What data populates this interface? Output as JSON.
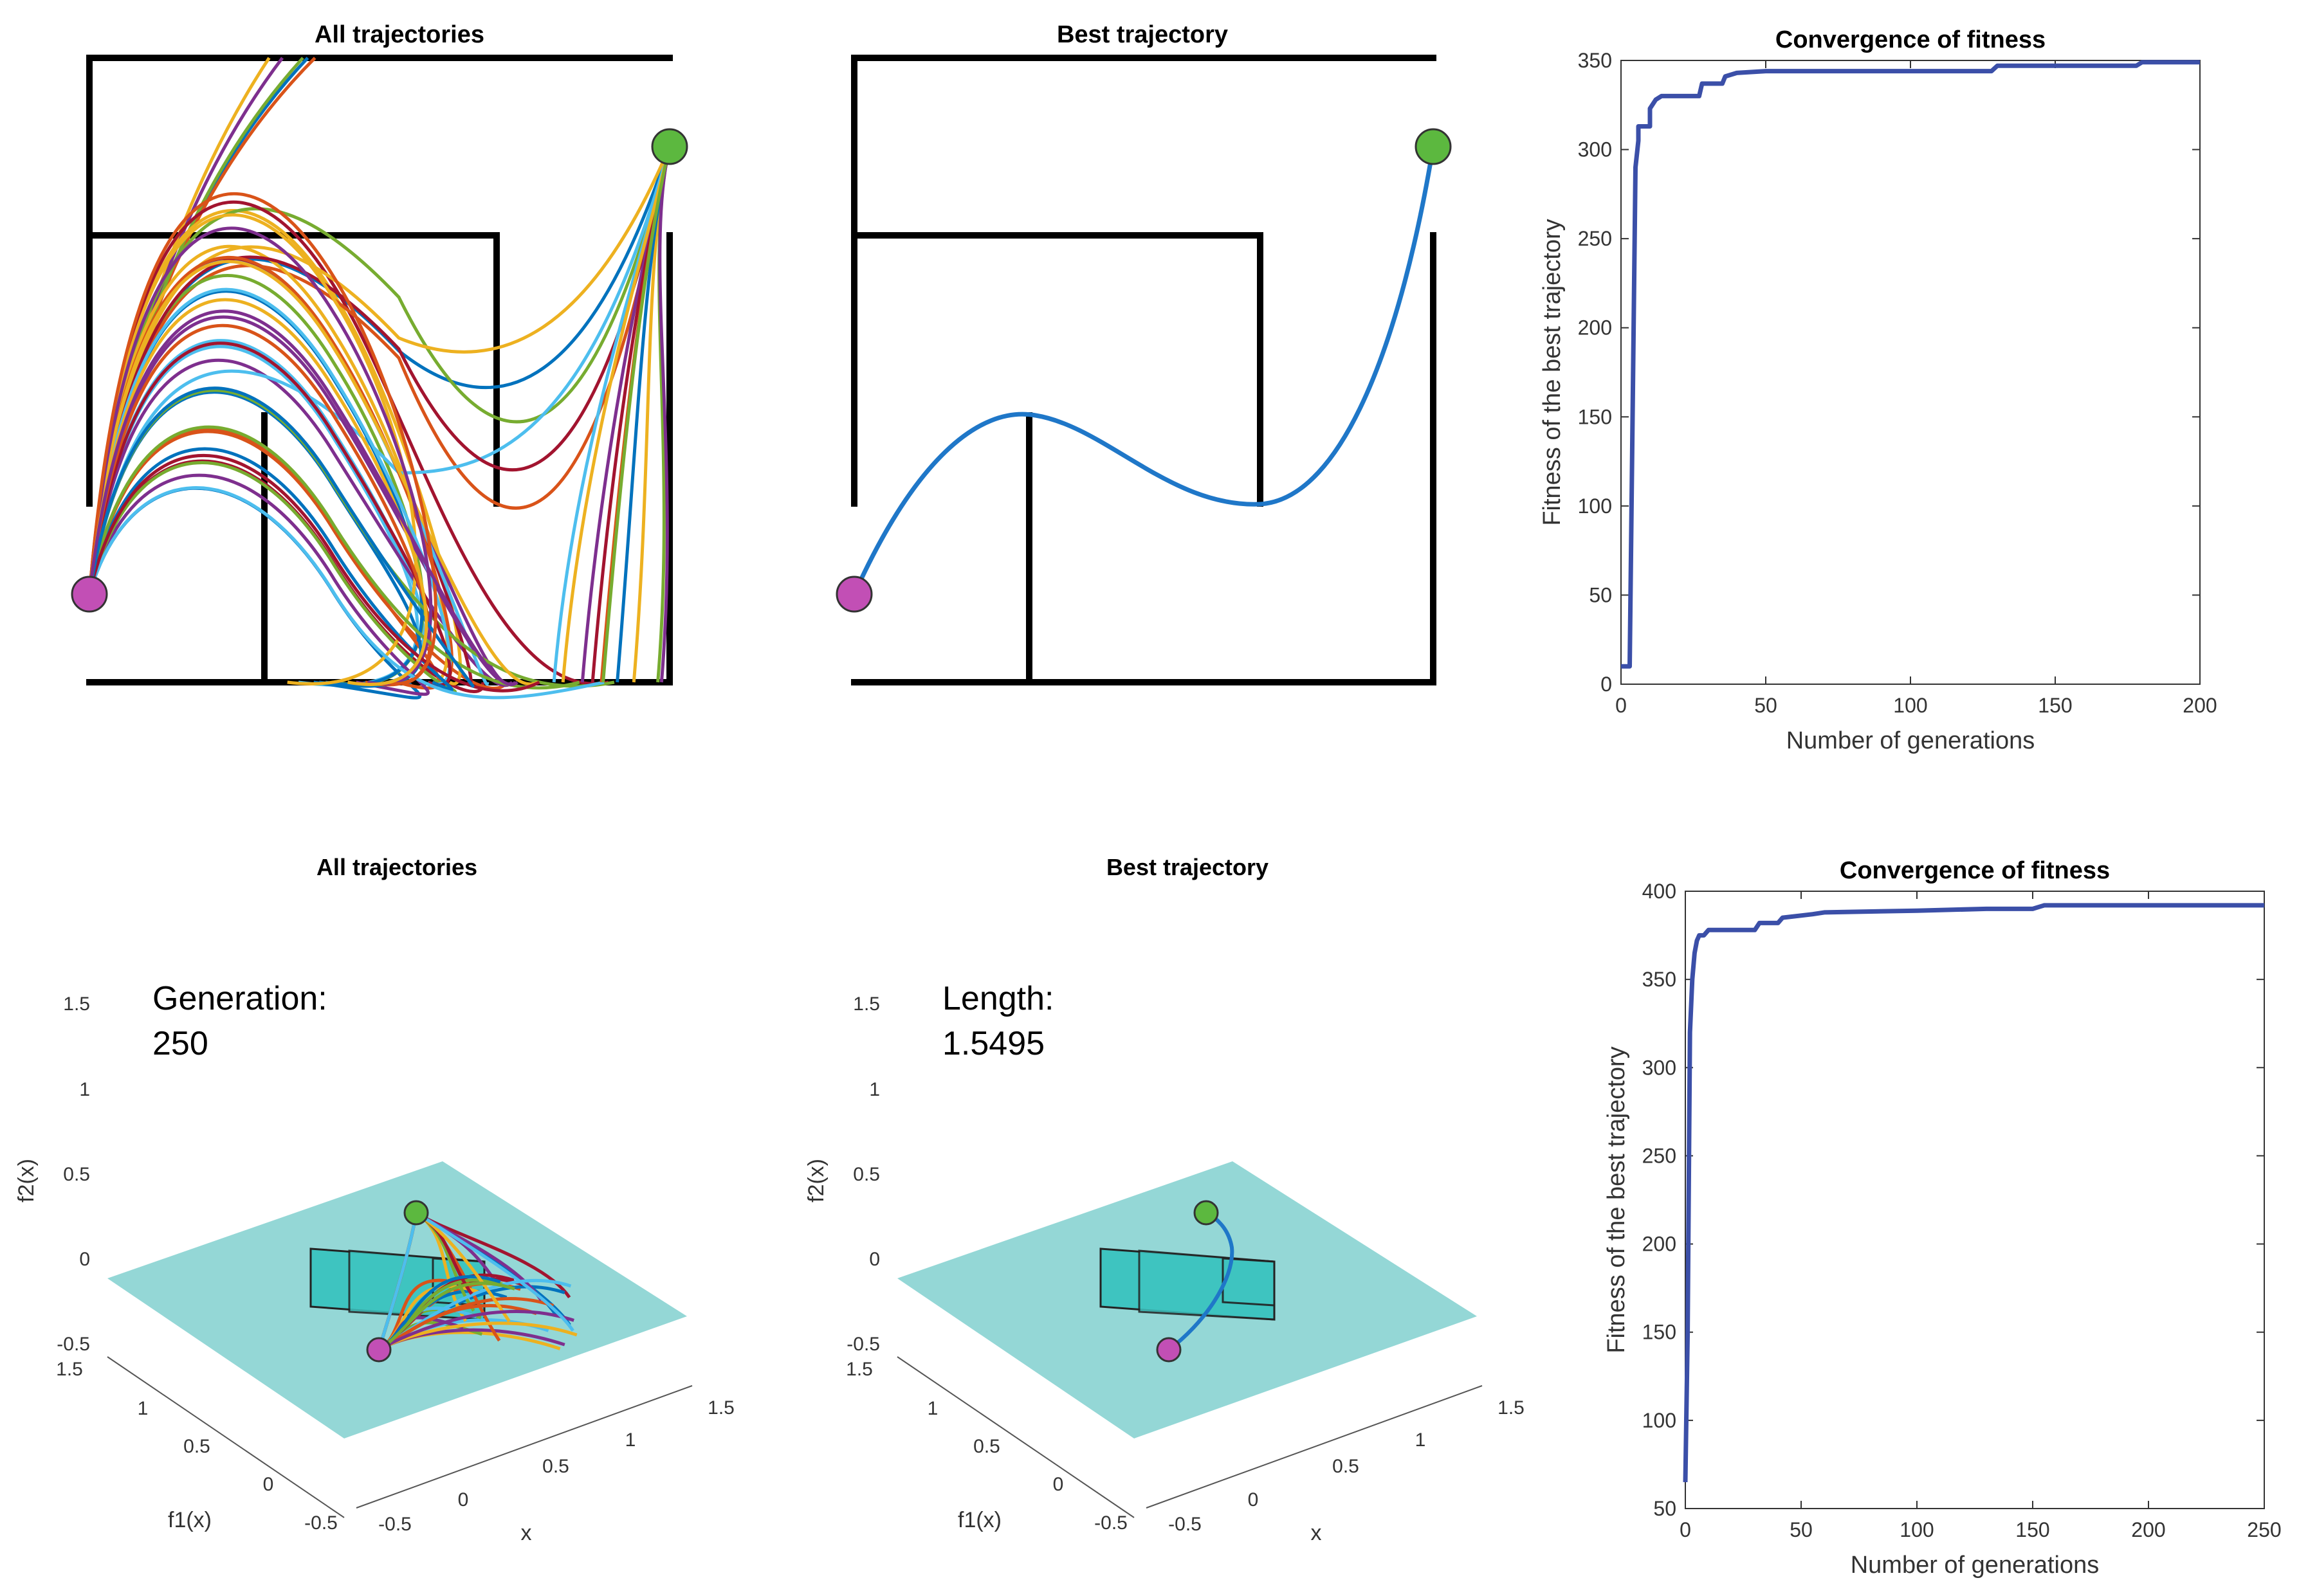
{
  "colors": {
    "background": "#ffffff",
    "wall": "#000000",
    "best_path": "#1f77c8",
    "convergence_line": "#3b4fa8",
    "start_marker": "#c24fb5",
    "goal_marker": "#5cb83f",
    "floor_plane": "#94d7d6",
    "obstacle": "#3ec4c0",
    "trajectory_palette": [
      "#0072BD",
      "#D95319",
      "#EDB120",
      "#7E2F8E",
      "#77AC30",
      "#4DBEEE",
      "#A2142F"
    ]
  },
  "panels": {
    "top_all": {
      "title": "All trajectories"
    },
    "top_best": {
      "title": "Best trajectory"
    },
    "bottom_all": {
      "title": "All trajectories",
      "annotation_label": "Generation:",
      "annotation_value": "250"
    },
    "bottom_best": {
      "title": "Best trajectory",
      "annotation_label": "Length:",
      "annotation_value": "1.5495"
    }
  },
  "axes3d": {
    "z_ticks": [
      "1.5",
      "1",
      "0.5",
      "0",
      "-0.5"
    ],
    "z_label": "f2(x)",
    "y_ticks": [
      "1.5",
      "1",
      "0.5",
      "0",
      "-0.5"
    ],
    "y_label": "f1(x)",
    "x_ticks": [
      "-0.5",
      "0",
      "0.5",
      "1",
      "1.5"
    ],
    "x_label": "x"
  },
  "chart_data": [
    {
      "type": "line",
      "title": "Convergence of fitness",
      "xlabel": "Number of generations",
      "ylabel": "Fitness of the best trajectory",
      "xlim": [
        0,
        200
      ],
      "ylim": [
        0,
        350
      ],
      "xticks": [
        0,
        50,
        100,
        150,
        200
      ],
      "yticks": [
        0,
        50,
        100,
        150,
        200,
        250,
        300,
        350
      ],
      "x": [
        0,
        3,
        4,
        5,
        6,
        6,
        10,
        10,
        12,
        14,
        20,
        27,
        28,
        35,
        36,
        40,
        50,
        100,
        128,
        130,
        178,
        180,
        200
      ],
      "values": [
        10,
        10,
        150,
        290,
        305,
        313,
        313,
        323,
        328,
        330,
        330,
        330,
        337,
        337,
        341,
        343,
        344,
        344,
        344,
        347,
        347,
        349,
        349
      ]
    },
    {
      "type": "line",
      "title": "Convergence of fitness",
      "xlabel": "Number of generations",
      "ylabel": "Fitness of the best trajectory",
      "xlim": [
        0,
        250
      ],
      "ylim": [
        50,
        400
      ],
      "xticks": [
        0,
        50,
        100,
        150,
        200,
        250
      ],
      "yticks": [
        50,
        100,
        150,
        200,
        250,
        300,
        350,
        400
      ],
      "x": [
        0,
        1,
        2,
        3,
        4,
        5,
        6,
        8,
        10,
        30,
        32,
        40,
        42,
        55,
        60,
        100,
        130,
        150,
        155,
        200,
        250
      ],
      "values": [
        65,
        150,
        320,
        350,
        365,
        372,
        375,
        375,
        378,
        378,
        382,
        382,
        385,
        387,
        388,
        389,
        390,
        390,
        392,
        392,
        392
      ]
    }
  ]
}
